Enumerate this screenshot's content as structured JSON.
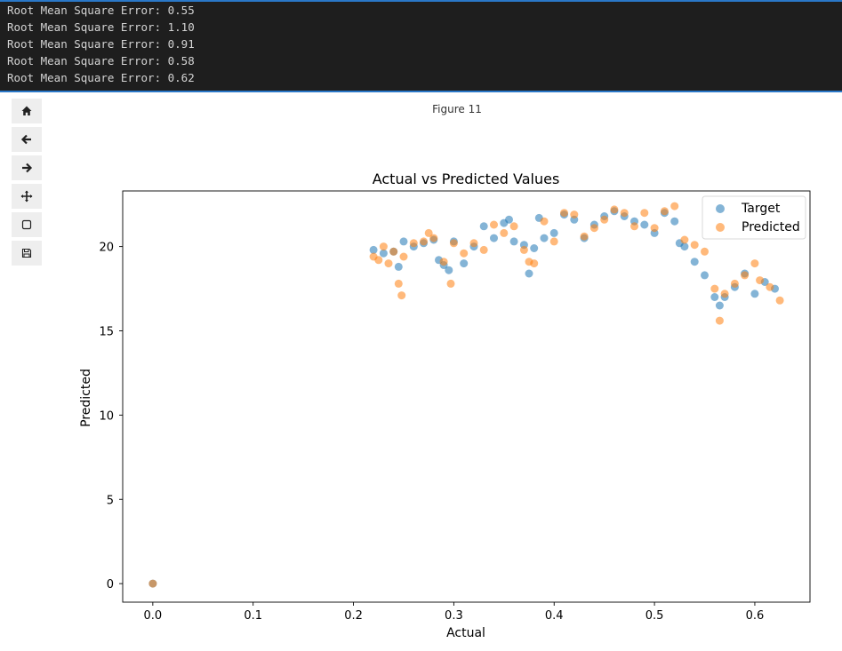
{
  "console": {
    "lines": [
      "Root Mean Square Error: 0.55",
      "Root Mean Square Error: 1.10",
      "Root Mean Square Error: 0.91",
      "Root Mean Square Error: 0.58",
      "Root Mean Square Error: 0.62"
    ]
  },
  "toolbar": {
    "buttons": [
      {
        "name": "home-icon"
      },
      {
        "name": "back-arrow-icon"
      },
      {
        "name": "forward-arrow-icon"
      },
      {
        "name": "pan-icon"
      },
      {
        "name": "zoom-rect-icon"
      },
      {
        "name": "save-icon"
      }
    ]
  },
  "figure": {
    "label": "Figure 11"
  },
  "colors": {
    "target": "#1f77b4",
    "predicted": "#ff7f0e"
  },
  "chart_data": {
    "type": "scatter",
    "title": "Actual vs Predicted Values",
    "xlabel": "Actual",
    "ylabel": "Predicted",
    "xlim": [
      -0.03,
      0.655
    ],
    "ylim": [
      -1.1,
      23.3
    ],
    "xticks": [
      0.0,
      0.1,
      0.2,
      0.3,
      0.4,
      0.5,
      0.6
    ],
    "xtick_labels": [
      "0.0",
      "0.1",
      "0.2",
      "0.3",
      "0.4",
      "0.5",
      "0.6"
    ],
    "yticks": [
      0,
      5,
      10,
      15,
      20
    ],
    "ytick_labels": [
      "0",
      "5",
      "10",
      "15",
      "20"
    ],
    "legend": {
      "position": "top-right",
      "entries": [
        "Target",
        "Predicted"
      ]
    },
    "series": [
      {
        "name": "Target",
        "color": "#1f77b4",
        "x": [
          0.0,
          0.22,
          0.23,
          0.24,
          0.245,
          0.25,
          0.26,
          0.27,
          0.28,
          0.285,
          0.29,
          0.295,
          0.3,
          0.31,
          0.32,
          0.33,
          0.34,
          0.35,
          0.355,
          0.36,
          0.37,
          0.375,
          0.38,
          0.385,
          0.39,
          0.4,
          0.41,
          0.42,
          0.43,
          0.44,
          0.45,
          0.46,
          0.47,
          0.48,
          0.49,
          0.5,
          0.51,
          0.52,
          0.525,
          0.53,
          0.54,
          0.55,
          0.56,
          0.565,
          0.57,
          0.58,
          0.59,
          0.6,
          0.61,
          0.62
        ],
        "y": [
          0.0,
          19.8,
          19.6,
          19.7,
          18.8,
          20.3,
          20.0,
          20.2,
          20.4,
          19.2,
          18.9,
          18.6,
          20.3,
          19.0,
          20.0,
          21.2,
          20.5,
          21.4,
          21.6,
          20.3,
          20.1,
          18.4,
          19.9,
          21.7,
          20.5,
          20.8,
          21.9,
          21.6,
          20.5,
          21.3,
          21.8,
          22.1,
          21.8,
          21.5,
          21.3,
          20.8,
          22.0,
          21.5,
          20.2,
          20.0,
          19.1,
          18.3,
          17.0,
          16.5,
          17.0,
          17.6,
          18.4,
          17.2,
          17.9,
          17.5
        ]
      },
      {
        "name": "Predicted",
        "color": "#ff7f0e",
        "x": [
          0.0,
          0.22,
          0.225,
          0.23,
          0.235,
          0.24,
          0.245,
          0.248,
          0.25,
          0.26,
          0.27,
          0.275,
          0.28,
          0.29,
          0.297,
          0.3,
          0.31,
          0.32,
          0.33,
          0.34,
          0.35,
          0.36,
          0.37,
          0.375,
          0.38,
          0.39,
          0.4,
          0.41,
          0.42,
          0.43,
          0.44,
          0.45,
          0.46,
          0.47,
          0.48,
          0.49,
          0.5,
          0.51,
          0.52,
          0.53,
          0.54,
          0.55,
          0.56,
          0.565,
          0.57,
          0.58,
          0.59,
          0.6,
          0.605,
          0.615,
          0.625
        ],
        "y": [
          0.0,
          19.4,
          19.2,
          20.0,
          19.0,
          19.7,
          17.8,
          17.1,
          19.4,
          20.2,
          20.3,
          20.8,
          20.5,
          19.1,
          17.8,
          20.2,
          19.6,
          20.2,
          19.8,
          21.3,
          20.8,
          21.2,
          19.8,
          19.1,
          19.0,
          21.5,
          20.3,
          22.0,
          21.9,
          20.6,
          21.1,
          21.6,
          22.2,
          22.0,
          21.2,
          22.0,
          21.1,
          22.1,
          22.4,
          20.4,
          20.1,
          19.7,
          17.5,
          15.6,
          17.2,
          17.8,
          18.3,
          19.0,
          18.0,
          17.6,
          16.8
        ]
      }
    ]
  }
}
